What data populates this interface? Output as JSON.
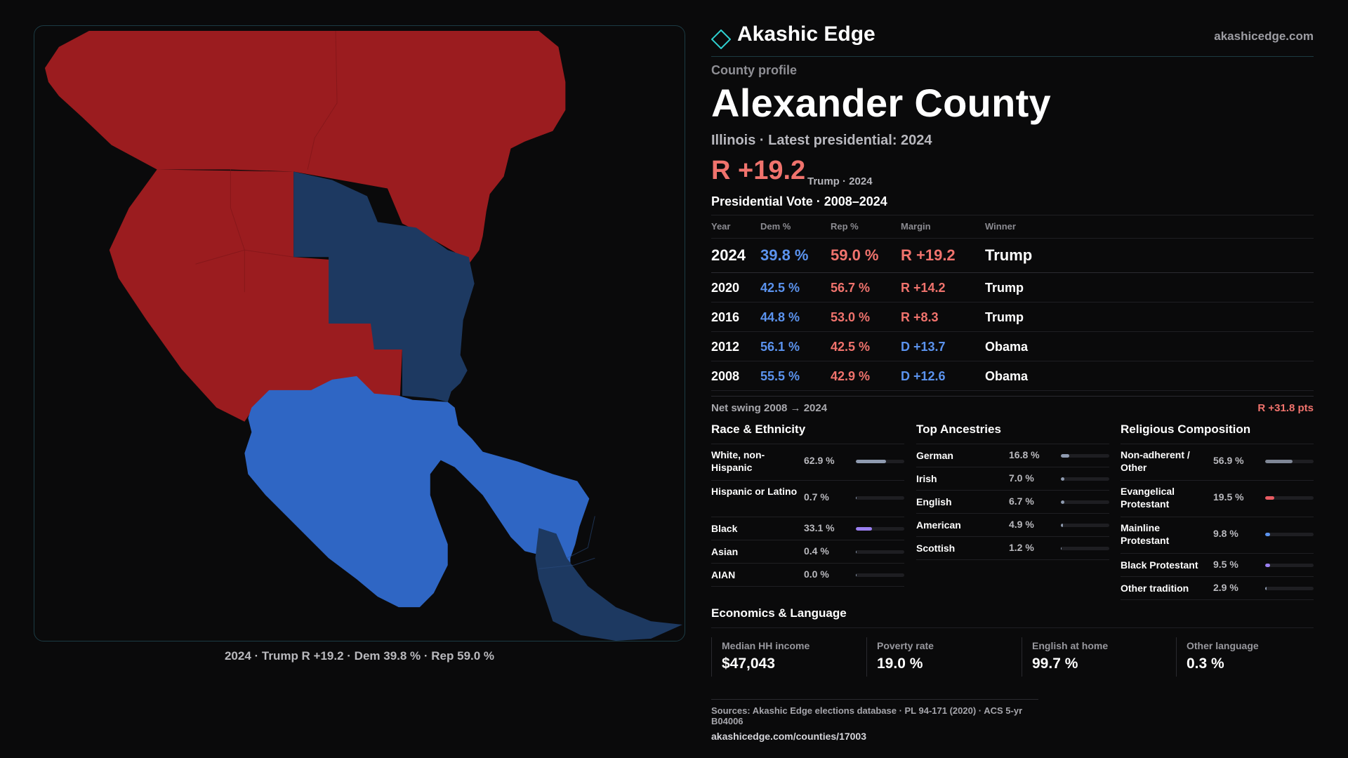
{
  "brand": {
    "name": "Akashic Edge",
    "url": "akashicedge.com"
  },
  "profile": {
    "eyebrow": "County profile",
    "title": "Alexander County",
    "subtitle": "Illinois · Latest presidential: 2024",
    "headline_margin": "R +19.2",
    "headline_note": "Trump · 2024"
  },
  "map": {
    "caption": "2024 · Trump R +19.2 · Dem 39.8 % · Rep 59.0 %",
    "colors": {
      "rep": "#9b1c1f",
      "dem_dark": "#1d3961",
      "dem_light": "#2f66c4"
    }
  },
  "vote": {
    "title": "Presidential Vote · 2008–2024",
    "headers": {
      "year": "Year",
      "dem": "Dem %",
      "rep": "Rep %",
      "margin": "Margin",
      "winner": "Winner"
    },
    "rows": [
      {
        "year": "2024",
        "dem": "39.8 %",
        "rep": "59.0 %",
        "margin": "R +19.2",
        "winner": "Trump"
      },
      {
        "year": "2020",
        "dem": "42.5 %",
        "rep": "56.7 %",
        "margin": "R +14.2",
        "winner": "Trump"
      },
      {
        "year": "2016",
        "dem": "44.8 %",
        "rep": "53.0 %",
        "margin": "R +8.3",
        "winner": "Trump"
      },
      {
        "year": "2012",
        "dem": "56.1 %",
        "rep": "42.5 %",
        "margin": "D +13.7",
        "winner": "Obama"
      },
      {
        "year": "2008",
        "dem": "55.5 %",
        "rep": "42.9 %",
        "margin": "D +12.6",
        "winner": "Obama"
      }
    ],
    "swing_label": "Net swing 2008 → 2024",
    "swing_value": "R +31.8 pts"
  },
  "race": {
    "title": "Race & Ethnicity",
    "items": [
      {
        "label": "White, non-Hispanic",
        "pct": "62.9 %",
        "value": 62.9,
        "color": "#8f9bb0"
      },
      {
        "label": "Hispanic or Latino",
        "pct": "0.7 %",
        "value": 0.7,
        "color": "#8f9bb0"
      },
      {
        "label": "Black",
        "pct": "33.1 %",
        "value": 33.1,
        "color": "#9a7ff0"
      },
      {
        "label": "Asian",
        "pct": "0.4 %",
        "value": 0.4,
        "color": "#8f9bb0"
      },
      {
        "label": "AIAN",
        "pct": "0.0 %",
        "value": 0.0,
        "color": "#8f9bb0"
      }
    ]
  },
  "ancestry": {
    "title": "Top Ancestries",
    "items": [
      {
        "label": "German",
        "pct": "16.8 %",
        "value": 16.8,
        "color": "#8f9bb0"
      },
      {
        "label": "Irish",
        "pct": "7.0 %",
        "value": 7.0,
        "color": "#8f9bb0"
      },
      {
        "label": "English",
        "pct": "6.7 %",
        "value": 6.7,
        "color": "#8f9bb0"
      },
      {
        "label": "American",
        "pct": "4.9 %",
        "value": 4.9,
        "color": "#8f9bb0"
      },
      {
        "label": "Scottish",
        "pct": "1.2 %",
        "value": 1.2,
        "color": "#8f9bb0"
      }
    ]
  },
  "religion": {
    "title": "Religious Composition",
    "items": [
      {
        "label": "Non-adherent / Other",
        "pct": "56.9 %",
        "value": 56.9,
        "color": "#7f8796"
      },
      {
        "label": "Evangelical Protestant",
        "pct": "19.5 %",
        "value": 19.5,
        "color": "#e85b62"
      },
      {
        "label": "Mainline Protestant",
        "pct": "9.8 %",
        "value": 9.8,
        "color": "#5b93ee"
      },
      {
        "label": "Black Protestant",
        "pct": "9.5 %",
        "value": 9.5,
        "color": "#9a7ff0"
      },
      {
        "label": "Other tradition",
        "pct": "2.9 %",
        "value": 2.9,
        "color": "#8f9bb0"
      }
    ]
  },
  "economics": {
    "title": "Economics & Language",
    "cells": [
      {
        "label": "Median HH income",
        "value": "$47,043"
      },
      {
        "label": "Poverty rate",
        "value": "19.0 %"
      },
      {
        "label": "English at home",
        "value": "99.7 %"
      },
      {
        "label": "Other language",
        "value": "0.3 %"
      }
    ]
  },
  "sources": {
    "line": "Sources: Akashic Edge elections database · PL 94-171 (2020) · ACS 5-yr B04006",
    "url": "akashicedge.com/counties/17003"
  }
}
